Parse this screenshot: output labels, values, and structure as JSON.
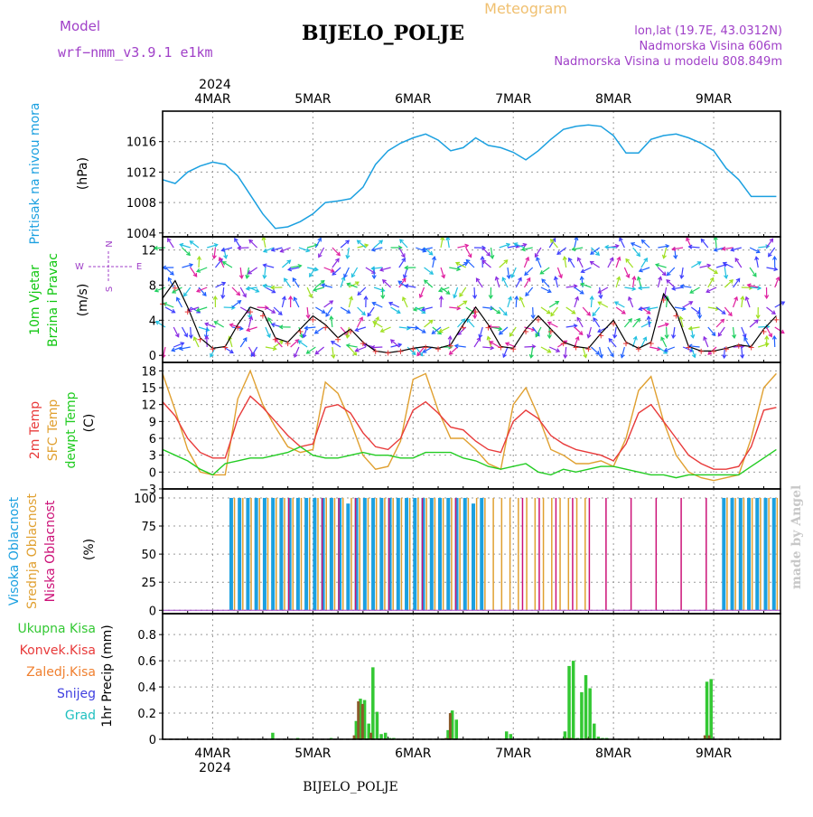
{
  "header": {
    "model_label": "Model",
    "model_name": "wrf−nmm_v3.9.1  e1km",
    "product": "Meteogram",
    "station": "BIJELO_POLJE",
    "lonlat": "lon,lat (19.7E, 43.0312N)",
    "elevation": "Nadmorska Visina 606m",
    "model_elevation": "Nadmorska Visina u modelu 808.849m",
    "watermark": "made by Angel",
    "footer_station": "BIJELO_POLJE"
  },
  "colors": {
    "pressure": "#1ba0e0",
    "wind": "#11c711",
    "temp2m": "#e83a3a",
    "sfc": "#e0a030",
    "dewpt": "#22cc22",
    "cloud_high": "#1ba0e0",
    "cloud_mid": "#e0a030",
    "cloud_low": "#cc1177",
    "precip_total": "#33c833",
    "precip_conv": "#e83a3a",
    "precip_frozen": "#f08030",
    "snow": "#4040e0",
    "hail": "#20c0c0",
    "model_text": "#a040c8"
  },
  "time_axis": {
    "year": "2024",
    "days": [
      "4MAR",
      "5MAR",
      "6MAR",
      "7MAR",
      "8MAR",
      "9MAR"
    ]
  },
  "panels": {
    "pressure": {
      "label": "Pritisak na nivou mora",
      "unit": "(hPa)",
      "ticks": [
        "1004",
        "1008",
        "1012",
        "1016"
      ]
    },
    "wind": {
      "label_line1": "10m Vjetar",
      "label_line2": "Brzina i Pravac",
      "unit": "(m/s)",
      "ticks": [
        "0",
        "4",
        "8",
        "12"
      ],
      "compass": {
        "n": "N",
        "s": "S",
        "e": "E",
        "w": "W"
      }
    },
    "temp": {
      "label_2m": "2m Temp",
      "label_sfc": "SFC Temp",
      "label_dew": "dewpt Temp",
      "unit": "(C)",
      "ticks": [
        "−3",
        "0",
        "3",
        "6",
        "9",
        "12",
        "15",
        "18"
      ]
    },
    "cloud": {
      "label_high": "Visoka Oblacnost",
      "label_mid": "Srednja Oblacnost",
      "label_low": "Niska Oblacnost",
      "unit": "(%)",
      "ticks": [
        "0",
        "25",
        "50",
        "75",
        "100"
      ]
    },
    "precip": {
      "legend": [
        "Ukupna Kisa",
        "Konvek.Kisa",
        "Zaledj.Kisa",
        "Snijeg",
        "Grad"
      ],
      "axis_label": "1hr Precip (mm)",
      "ticks": [
        "0",
        "0.2",
        "0.4",
        "0.6",
        "0.8"
      ]
    }
  },
  "chart_data": [
    {
      "type": "line",
      "title": "Pritisak na nivou mora",
      "ylabel": "(hPa)",
      "ylim": [
        1004,
        1020
      ],
      "x_unit": "hours from 2024-03-03 12 UTC",
      "series": [
        {
          "name": "Pritisak na nivou mora",
          "x": [
            0,
            3,
            6,
            9,
            12,
            15,
            18,
            21,
            24,
            27,
            30,
            33,
            36,
            39,
            42,
            45,
            48,
            51,
            54,
            57,
            60,
            63,
            66,
            69,
            72,
            75,
            78,
            81,
            84,
            87,
            90,
            93,
            96,
            99,
            102,
            105,
            108,
            111,
            114,
            117,
            120,
            123,
            126,
            129,
            132,
            135,
            138,
            141,
            144,
            147
          ],
          "values": [
            1011.0,
            1010.5,
            1012.0,
            1012.8,
            1013.3,
            1013.0,
            1011.5,
            1009.0,
            1006.5,
            1004.6,
            1004.8,
            1005.5,
            1006.5,
            1008.0,
            1008.2,
            1008.5,
            1010.0,
            1013.0,
            1014.8,
            1015.8,
            1016.5,
            1017.0,
            1016.2,
            1014.8,
            1015.2,
            1016.5,
            1015.5,
            1015.2,
            1014.6,
            1013.6,
            1014.8,
            1016.3,
            1017.6,
            1018.0,
            1018.2,
            1018.0,
            1016.8,
            1014.5,
            1014.5,
            1016.3,
            1016.8,
            1017.0,
            1016.5,
            1015.8,
            1014.8,
            1012.5,
            1011.0,
            1008.8,
            1008.8,
            1008.8
          ]
        }
      ]
    },
    {
      "type": "line",
      "title": "10m Vjetar Brzina i Pravac",
      "ylabel": "(m/s)",
      "ylim": [
        -1,
        13
      ],
      "x_unit": "hours from 2024-03-03 12 UTC",
      "series": [
        {
          "name": "10m Vjetar",
          "x": [
            0,
            3,
            6,
            9,
            12,
            15,
            18,
            21,
            24,
            27,
            30,
            33,
            36,
            39,
            42,
            45,
            48,
            51,
            54,
            57,
            60,
            63,
            66,
            69,
            72,
            75,
            78,
            81,
            84,
            87,
            90,
            93,
            96,
            99,
            102,
            105,
            108,
            111,
            114,
            117,
            120,
            123,
            126,
            129,
            132,
            135,
            138,
            141,
            144,
            147
          ],
          "values": [
            6.5,
            8.5,
            5.5,
            2.0,
            0.8,
            1.0,
            3.5,
            5.5,
            5.0,
            2.0,
            1.5,
            3.0,
            4.5,
            3.5,
            2.0,
            3.0,
            1.5,
            0.5,
            0.3,
            0.5,
            0.8,
            1.0,
            0.8,
            1.2,
            3.5,
            5.5,
            3.5,
            1.0,
            0.8,
            3.0,
            4.5,
            3.0,
            1.5,
            1.0,
            0.8,
            2.5,
            4.0,
            1.5,
            0.8,
            1.5,
            7.0,
            5.0,
            1.0,
            0.5,
            0.5,
            0.8,
            1.2,
            1.0,
            3.0,
            4.5
          ]
        }
      ]
    },
    {
      "type": "line",
      "title": "2m Temp / SFC Temp / dewpt Temp",
      "ylabel": "(C)",
      "ylim": [
        -3,
        19
      ],
      "x_unit": "hours from 2024-03-03 12 UTC",
      "series": [
        {
          "name": "2m Temp",
          "x": [
            0,
            3,
            6,
            9,
            12,
            15,
            18,
            21,
            24,
            27,
            30,
            33,
            36,
            39,
            42,
            45,
            48,
            51,
            54,
            57,
            60,
            63,
            66,
            69,
            72,
            75,
            78,
            81,
            84,
            87,
            90,
            93,
            96,
            99,
            102,
            105,
            108,
            111,
            114,
            117,
            120,
            123,
            126,
            129,
            132,
            135,
            138,
            141,
            144,
            147
          ],
          "values": [
            12.5,
            10.0,
            6.0,
            3.5,
            2.5,
            2.5,
            9.5,
            13.5,
            11.5,
            9.0,
            6.5,
            4.5,
            5.0,
            11.5,
            12.0,
            10.5,
            7.0,
            4.5,
            4.0,
            6.0,
            11.0,
            12.5,
            10.5,
            8.0,
            7.5,
            5.5,
            4.0,
            3.5,
            9.0,
            11.0,
            9.5,
            6.5,
            5.0,
            4.0,
            3.5,
            3.0,
            2.0,
            5.0,
            10.5,
            12.0,
            9.0,
            6.0,
            3.0,
            1.5,
            0.5,
            0.5,
            1.0,
            4.5,
            11.0,
            11.5
          ]
        },
        {
          "name": "SFC Temp",
          "x": [
            0,
            3,
            6,
            9,
            12,
            15,
            18,
            21,
            24,
            27,
            30,
            33,
            36,
            39,
            42,
            45,
            48,
            51,
            54,
            57,
            60,
            63,
            66,
            69,
            72,
            75,
            78,
            81,
            84,
            87,
            90,
            93,
            96,
            99,
            102,
            105,
            108,
            111,
            114,
            117,
            120,
            123,
            126,
            129,
            132,
            135,
            138,
            141,
            144,
            147
          ],
          "values": [
            17.5,
            11.0,
            4.0,
            0.0,
            -0.5,
            -0.5,
            13.0,
            18.0,
            12.0,
            8.0,
            4.5,
            3.5,
            4.0,
            16.0,
            14.0,
            9.0,
            3.0,
            0.5,
            1.0,
            5.5,
            16.5,
            17.5,
            11.0,
            6.0,
            6.0,
            4.0,
            1.5,
            0.5,
            12.0,
            15.0,
            10.0,
            4.0,
            3.0,
            1.5,
            1.5,
            2.0,
            1.0,
            6.0,
            14.5,
            17.0,
            9.0,
            3.0,
            0.0,
            -1.0,
            -1.5,
            -1.0,
            -0.5,
            6.0,
            15.0,
            17.5
          ]
        },
        {
          "name": "dewpt Temp",
          "x": [
            0,
            3,
            6,
            9,
            12,
            15,
            18,
            21,
            24,
            27,
            30,
            33,
            36,
            39,
            42,
            45,
            48,
            51,
            54,
            57,
            60,
            63,
            66,
            69,
            72,
            75,
            78,
            81,
            84,
            87,
            90,
            93,
            96,
            99,
            102,
            105,
            108,
            111,
            114,
            117,
            120,
            123,
            126,
            129,
            132,
            135,
            138,
            141,
            144,
            147
          ],
          "values": [
            4.0,
            3.0,
            2.0,
            0.5,
            -0.5,
            1.5,
            2.0,
            2.5,
            2.5,
            3.0,
            3.5,
            4.5,
            3.0,
            2.5,
            2.5,
            3.0,
            3.5,
            3.0,
            3.0,
            2.5,
            2.5,
            3.5,
            3.5,
            3.5,
            2.5,
            2.0,
            1.0,
            0.5,
            1.0,
            1.5,
            0.0,
            -0.5,
            0.5,
            0.0,
            0.5,
            1.0,
            1.0,
            0.5,
            0.0,
            -0.5,
            -0.5,
            -1.0,
            -0.5,
            -0.5,
            -0.5,
            -0.5,
            -0.5,
            1.0,
            2.5,
            4.0
          ]
        }
      ]
    },
    {
      "type": "bar",
      "title": "Visoka / Srednja / Niska Oblacnost",
      "ylabel": "(%)",
      "ylim": [
        0,
        100
      ],
      "x_unit": "hours from 2024-03-03 12 UTC",
      "series": [
        {
          "name": "Visoka Oblacnost",
          "x": [
            16,
            18,
            20,
            22,
            24,
            26,
            28,
            30,
            32,
            34,
            36,
            38,
            40,
            42,
            44,
            46,
            48,
            50,
            52,
            54,
            56,
            58,
            60,
            62,
            64,
            66,
            68,
            70,
            72,
            74,
            76,
            134,
            136,
            138,
            140,
            142,
            144,
            146
          ],
          "values": [
            100,
            100,
            100,
            100,
            100,
            100,
            100,
            100,
            100,
            100,
            100,
            100,
            100,
            100,
            95,
            100,
            100,
            100,
            100,
            100,
            100,
            100,
            100,
            100,
            100,
            100,
            100,
            100,
            100,
            95,
            100,
            100,
            100,
            100,
            100,
            100,
            100,
            100
          ]
        },
        {
          "name": "Srednja Oblacnost",
          "x": [
            17,
            19,
            21,
            23,
            25,
            27,
            29,
            31,
            33,
            35,
            37,
            39,
            41,
            43,
            45,
            47,
            49,
            51,
            53,
            55,
            57,
            59,
            61,
            63,
            65,
            67,
            69,
            71,
            73,
            75,
            77,
            79,
            81,
            83,
            85,
            87,
            89,
            91,
            93,
            95,
            97,
            99,
            101,
            135,
            137,
            139,
            141,
            143,
            145,
            147
          ],
          "values": [
            100,
            100,
            100,
            100,
            100,
            100,
            100,
            100,
            100,
            100,
            100,
            100,
            100,
            100,
            100,
            100,
            100,
            100,
            100,
            100,
            100,
            100,
            100,
            100,
            100,
            100,
            100,
            100,
            100,
            100,
            100,
            100,
            100,
            100,
            100,
            100,
            100,
            100,
            100,
            100,
            100,
            100,
            100,
            100,
            100,
            100,
            100,
            100,
            100,
            100
          ]
        },
        {
          "name": "Niska Oblacnost",
          "x": [
            30,
            38,
            42,
            46,
            54,
            62,
            70,
            86,
            90,
            94,
            98,
            102,
            106,
            112,
            118,
            124,
            130
          ],
          "values": [
            100,
            100,
            100,
            100,
            100,
            100,
            100,
            100,
            100,
            100,
            100,
            100,
            100,
            100,
            100,
            100,
            100
          ]
        }
      ]
    },
    {
      "type": "bar",
      "title": "1hr Precip",
      "ylabel": "1hr Precip (mm)",
      "ylim": [
        0,
        0.9
      ],
      "x_unit": "hours from 2024-03-03 12 UTC",
      "series": [
        {
          "name": "Ukupna Kisa",
          "x": [
            26,
            32,
            40,
            46,
            47,
            48,
            49,
            50,
            51,
            52,
            53,
            54,
            55,
            68,
            69,
            70,
            82,
            83,
            96,
            97,
            98,
            99,
            100,
            101,
            102,
            103,
            104,
            105,
            106,
            130,
            131
          ],
          "values": [
            0.05,
            0.01,
            0.01,
            0.14,
            0.31,
            0.3,
            0.12,
            0.55,
            0.21,
            0.04,
            0.05,
            0.01,
            0.01,
            0.07,
            0.22,
            0.15,
            0.06,
            0.04,
            0.06,
            0.56,
            0.6,
            0.01,
            0.36,
            0.49,
            0.39,
            0.12,
            0.02,
            0.01,
            0.01,
            0.44,
            0.46
          ]
        },
        {
          "name": "Konvek.Kisa",
          "x": [
            46,
            47,
            48,
            50,
            68,
            69,
            97,
            98,
            102,
            130,
            131
          ],
          "values": [
            0.03,
            0.29,
            0.27,
            0.05,
            0.01,
            0.2,
            0.01,
            0.01,
            0.01,
            0.03,
            0.03
          ]
        }
      ]
    }
  ]
}
